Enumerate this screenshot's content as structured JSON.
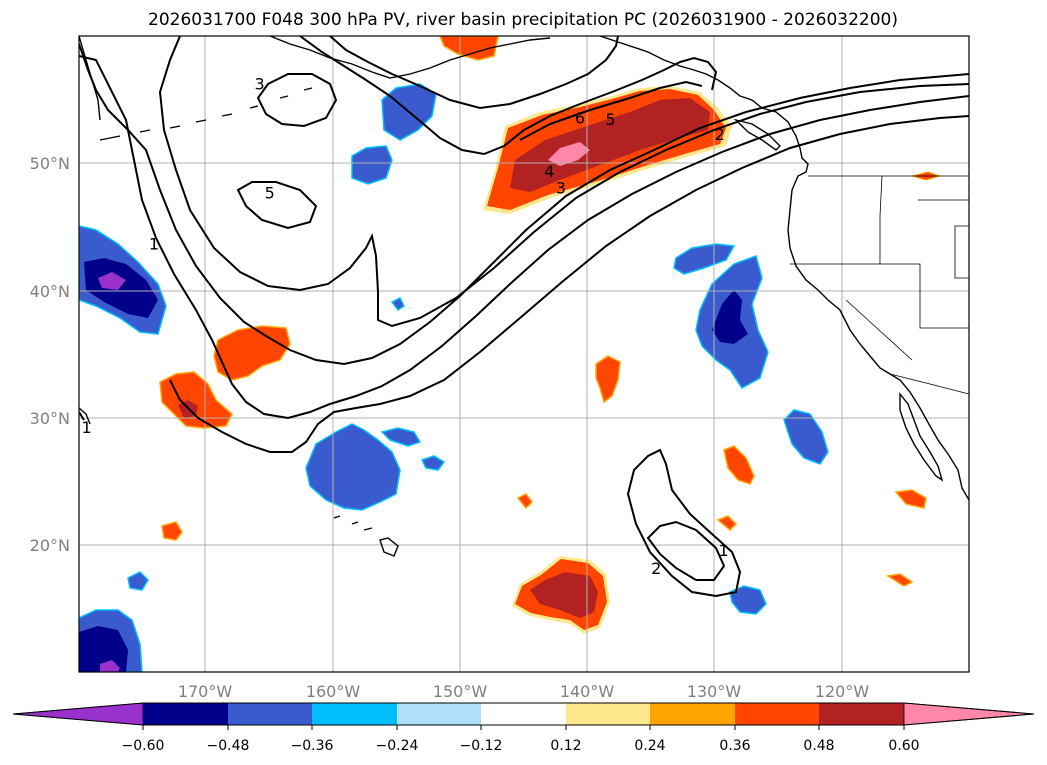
{
  "title": "2026031700 F048 300 hPa PV, river basin precipitation PC (2026031900 - 2026032200)",
  "map": {
    "lon_range": [
      -180,
      -110
    ],
    "lat_range": [
      10,
      60
    ],
    "lon_ticks": [
      {
        "value": -170,
        "label": "170°W"
      },
      {
        "value": -160,
        "label": "160°W"
      },
      {
        "value": -150,
        "label": "150°W"
      },
      {
        "value": -140,
        "label": "140°W"
      },
      {
        "value": -130,
        "label": "130°W"
      },
      {
        "value": -120,
        "label": "120°W"
      }
    ],
    "lat_ticks": [
      {
        "value": 20,
        "label": "20°N"
      },
      {
        "value": 30,
        "label": "30°N"
      },
      {
        "value": 40,
        "label": "40°N"
      },
      {
        "value": 50,
        "label": "50°N"
      }
    ],
    "pv_contour_labels": [
      {
        "text": "3",
        "lon": -165.8,
        "lat": 56.2
      },
      {
        "text": "5",
        "lon": -165.0,
        "lat": 47.6
      },
      {
        "text": "1",
        "lon": -174.1,
        "lat": 43.6
      },
      {
        "text": "6",
        "lon": -140.6,
        "lat": 53.5
      },
      {
        "text": "5",
        "lon": -138.2,
        "lat": 53.4
      },
      {
        "text": "4",
        "lon": -143.0,
        "lat": 49.3
      },
      {
        "text": "3",
        "lon": -142.1,
        "lat": 48.0
      },
      {
        "text": "2",
        "lon": -129.6,
        "lat": 52.2
      },
      {
        "text": "1",
        "lon": -179.4,
        "lat": 29.2
      },
      {
        "text": "2",
        "lon": -134.6,
        "lat": 18.1
      },
      {
        "text": "1",
        "lon": -129.3,
        "lat": 19.5
      }
    ]
  },
  "colorbar": {
    "colors": [
      "#9932cc",
      "#00008b",
      "#3a5bcd",
      "#00bfff",
      "#afe0fa",
      "#ffffff",
      "#ffe78c",
      "#ffa500",
      "#ff4500",
      "#b22222",
      "#ff88aa"
    ],
    "ticks": [
      "−0.60",
      "−0.48",
      "−0.36",
      "−0.24",
      "−0.12",
      "0.12",
      "0.24",
      "0.36",
      "0.48",
      "0.60"
    ]
  }
}
